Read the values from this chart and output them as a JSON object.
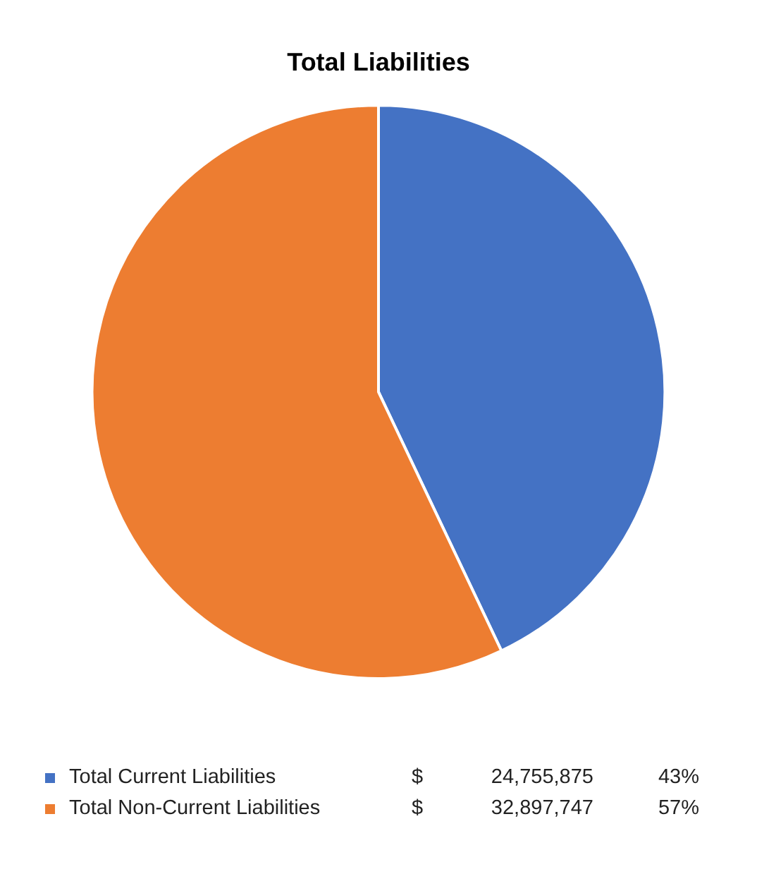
{
  "chart_data": {
    "type": "pie",
    "title": "Total Liabilities",
    "categories": [
      "Total Current Liabilities",
      "Total Non-Current Liabilities"
    ],
    "values": [
      24755875,
      32897747
    ],
    "colors": [
      "#4472c4",
      "#ed7d31"
    ],
    "value_labels": [
      "24,755,875",
      "32,897,747"
    ],
    "annotations": [
      "$",
      "43%",
      "$",
      "57%"
    ],
    "legend": "bottom"
  }
}
